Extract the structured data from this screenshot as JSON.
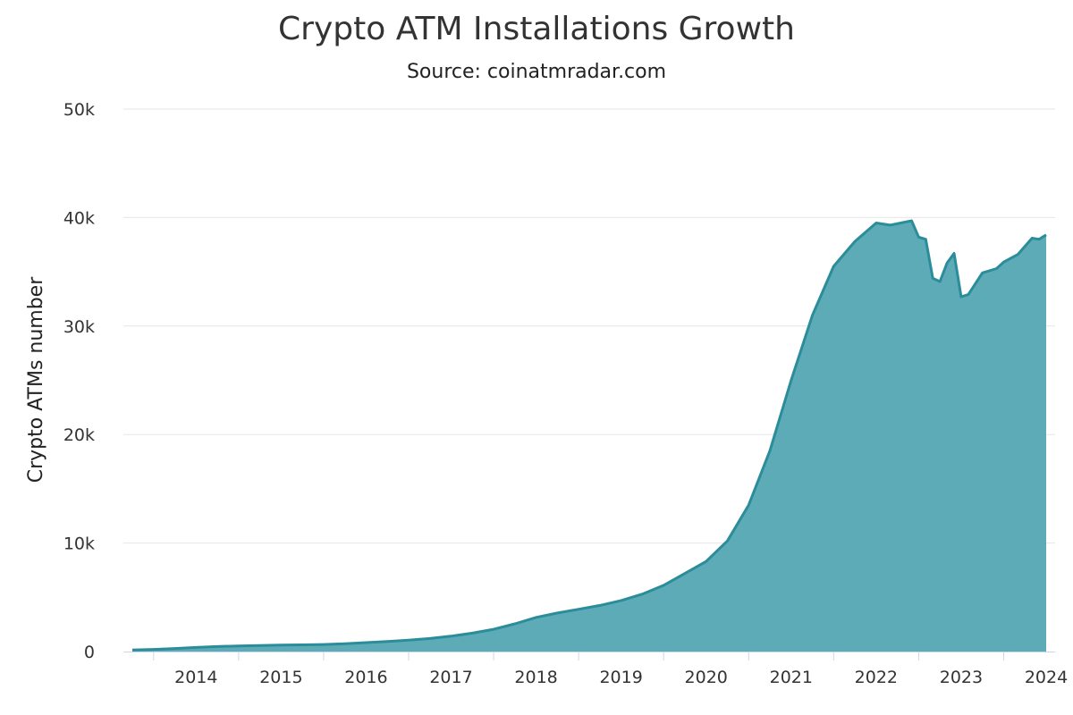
{
  "chart_data": {
    "type": "area",
    "title": "Crypto ATM Installations Growth",
    "subtitle": "Source: coinatmradar.com",
    "xlabel": "",
    "ylabel": "Crypto ATMs number",
    "x_ticks": [
      "2014",
      "2015",
      "2016",
      "2017",
      "2018",
      "2019",
      "2020",
      "2021",
      "2022",
      "2023",
      "2024"
    ],
    "y_ticks": [
      "0",
      "10k",
      "20k",
      "30k",
      "40k",
      "50k"
    ],
    "ylim": [
      0,
      50000
    ],
    "xlim": [
      "2013-10",
      "2024-07"
    ],
    "grid": true,
    "legend": "none",
    "colors": {
      "fill": "#5eabb8",
      "line": "#2b8c9a",
      "grid": "#e6e6e6",
      "axis": "#ccd6eb"
    },
    "series": [
      {
        "points": [
          [
            "2013-10",
            150
          ],
          [
            "2014-01",
            200
          ],
          [
            "2014-04",
            280
          ],
          [
            "2014-07",
            380
          ],
          [
            "2014-10",
            460
          ],
          [
            "2015-01",
            520
          ],
          [
            "2015-04",
            560
          ],
          [
            "2015-07",
            600
          ],
          [
            "2015-10",
            620
          ],
          [
            "2016-01",
            650
          ],
          [
            "2016-04",
            720
          ],
          [
            "2016-07",
            820
          ],
          [
            "2016-10",
            920
          ],
          [
            "2017-01",
            1050
          ],
          [
            "2017-04",
            1200
          ],
          [
            "2017-07",
            1420
          ],
          [
            "2017-10",
            1700
          ],
          [
            "2018-01",
            2050
          ],
          [
            "2018-04",
            2550
          ],
          [
            "2018-07",
            3150
          ],
          [
            "2018-10",
            3550
          ],
          [
            "2019-01",
            3900
          ],
          [
            "2019-04",
            4250
          ],
          [
            "2019-07",
            4700
          ],
          [
            "2019-10",
            5300
          ],
          [
            "2020-01",
            6100
          ],
          [
            "2020-04",
            7200
          ],
          [
            "2020-07",
            8300
          ],
          [
            "2020-10",
            10200
          ],
          [
            "2021-01",
            13500
          ],
          [
            "2021-04",
            18500
          ],
          [
            "2021-07",
            25000
          ],
          [
            "2021-10",
            31000
          ],
          [
            "2022-01",
            35500
          ],
          [
            "2022-04",
            37800
          ],
          [
            "2022-07",
            39500
          ],
          [
            "2022-09",
            39300
          ],
          [
            "2022-12",
            39700
          ],
          [
            "2023-01",
            38200
          ],
          [
            "2023-02",
            38000
          ],
          [
            "2023-03",
            34400
          ],
          [
            "2023-04",
            34100
          ],
          [
            "2023-05",
            35800
          ],
          [
            "2023-06",
            36700
          ],
          [
            "2023-07",
            32700
          ],
          [
            "2023-08",
            32900
          ],
          [
            "2023-10",
            34900
          ],
          [
            "2023-12",
            35300
          ],
          [
            "2024-01",
            35900
          ],
          [
            "2024-03",
            36600
          ],
          [
            "2024-05",
            38100
          ],
          [
            "2024-06",
            38000
          ],
          [
            "2024-07",
            38400
          ]
        ]
      }
    ]
  }
}
